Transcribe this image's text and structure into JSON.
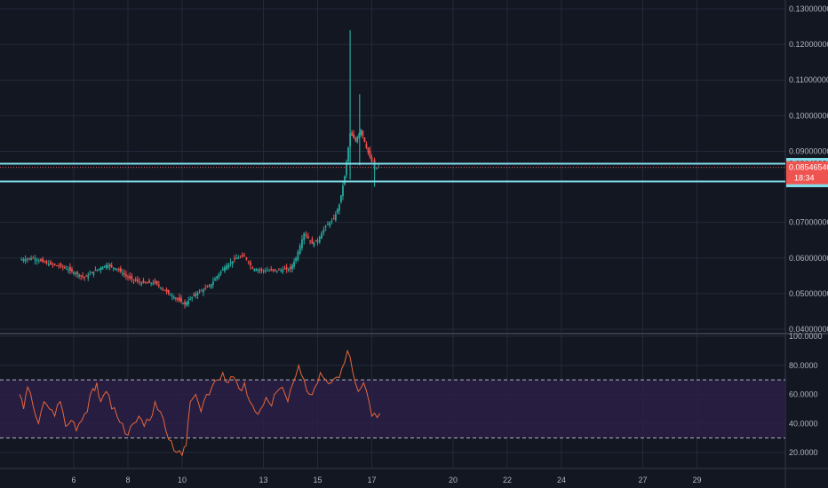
{
  "colors": {
    "background": "#131722",
    "grid": "#242a3a",
    "axis_text": "#b2b5be",
    "up": "#26a69a",
    "down": "#ef5350",
    "hline": "#80deea",
    "price_tag": "#ef5350",
    "rsi_line": "#e8663a",
    "rsi_band": "#2a1f45"
  },
  "chart_data": [
    {
      "type": "candlestick",
      "title": "",
      "x": {
        "type": "date-day",
        "ticks": [
          "6",
          "8",
          "10",
          "13",
          "15",
          "17",
          "20",
          "22",
          "24",
          "27",
          "29"
        ]
      },
      "y": {
        "ylim": [
          0.04,
          0.13
        ],
        "ticks": [
          "0.13000000",
          "0.12000000",
          "0.11000000",
          "0.10000000",
          "0.09000000",
          "0.07000000",
          "0.06000000",
          "0.05000000",
          "0.04000000"
        ]
      },
      "price_path": [
        [
          4.0,
          0.0595
        ],
        [
          4.5,
          0.06
        ],
        [
          5.0,
          0.0585
        ],
        [
          5.6,
          0.0575
        ],
        [
          6.0,
          0.056
        ],
        [
          6.4,
          0.0545
        ],
        [
          6.8,
          0.0565
        ],
        [
          7.2,
          0.058
        ],
        [
          7.6,
          0.057
        ],
        [
          8.0,
          0.0545
        ],
        [
          8.5,
          0.053
        ],
        [
          9.0,
          0.053
        ],
        [
          9.5,
          0.05
        ],
        [
          9.9,
          0.048
        ],
        [
          10.1,
          0.047
        ],
        [
          10.5,
          0.05
        ],
        [
          11.0,
          0.052
        ],
        [
          11.5,
          0.057
        ],
        [
          12.0,
          0.06
        ],
        [
          12.3,
          0.0605
        ],
        [
          12.6,
          0.057
        ],
        [
          13.0,
          0.0565
        ],
        [
          13.5,
          0.0565
        ],
        [
          14.0,
          0.057
        ],
        [
          14.2,
          0.06
        ],
        [
          14.5,
          0.067
        ],
        [
          14.8,
          0.064
        ],
        [
          15.0,
          0.065
        ],
        [
          15.3,
          0.069
        ],
        [
          15.6,
          0.071
        ],
        [
          15.8,
          0.075
        ],
        [
          16.0,
          0.083
        ],
        [
          16.2,
          0.095
        ],
        [
          16.4,
          0.093
        ],
        [
          16.6,
          0.096
        ],
        [
          16.8,
          0.091
        ],
        [
          17.0,
          0.087
        ],
        [
          17.1,
          0.085
        ],
        [
          17.25,
          0.0855
        ]
      ],
      "wicks": [
        [
          16.2,
          0.082,
          0.124
        ],
        [
          16.55,
          0.086,
          0.106
        ],
        [
          17.1,
          0.08,
          0.087
        ]
      ],
      "horizontal_lines": [
        {
          "value": 0.08649326,
          "label": "0.08649326"
        },
        {
          "value": 0.08151697,
          "label": "0.08151697"
        }
      ],
      "last_price": {
        "value": 0.0854654,
        "label": "0.08546540",
        "countdown": "18:34"
      }
    },
    {
      "type": "line",
      "title": "",
      "y": {
        "ylim": [
          15,
          100
        ],
        "ticks": [
          "100.0000",
          "80.0000",
          "60.0000",
          "40.0000",
          "20.0000"
        ]
      },
      "bands": [
        30,
        70
      ],
      "series": [
        {
          "points": [
            [
              4.0,
              60
            ],
            [
              4.15,
              50
            ],
            [
              4.3,
              65
            ],
            [
              4.5,
              52
            ],
            [
              4.7,
              40
            ],
            [
              4.9,
              55
            ],
            [
              5.1,
              50
            ],
            [
              5.3,
              45
            ],
            [
              5.5,
              55
            ],
            [
              5.7,
              38
            ],
            [
              5.9,
              42
            ],
            [
              6.1,
              35
            ],
            [
              6.3,
              42
            ],
            [
              6.5,
              48
            ],
            [
              6.7,
              64
            ],
            [
              6.85,
              68
            ],
            [
              7.0,
              55
            ],
            [
              7.2,
              62
            ],
            [
              7.4,
              50
            ],
            [
              7.6,
              45
            ],
            [
              7.8,
              40
            ],
            [
              8.0,
              32
            ],
            [
              8.2,
              40
            ],
            [
              8.4,
              45
            ],
            [
              8.6,
              38
            ],
            [
              8.8,
              42
            ],
            [
              9.0,
              55
            ],
            [
              9.2,
              48
            ],
            [
              9.4,
              35
            ],
            [
              9.6,
              28
            ],
            [
              9.8,
              20
            ],
            [
              10.0,
              18
            ],
            [
              10.15,
              25
            ],
            [
              10.3,
              55
            ],
            [
              10.5,
              60
            ],
            [
              10.7,
              48
            ],
            [
              10.9,
              60
            ],
            [
              11.1,
              65
            ],
            [
              11.3,
              70
            ],
            [
              11.5,
              75
            ],
            [
              11.7,
              68
            ],
            [
              11.9,
              72
            ],
            [
              12.1,
              64
            ],
            [
              12.3,
              68
            ],
            [
              12.5,
              55
            ],
            [
              12.7,
              48
            ],
            [
              12.9,
              50
            ],
            [
              13.1,
              58
            ],
            [
              13.3,
              52
            ],
            [
              13.5,
              62
            ],
            [
              13.7,
              65
            ],
            [
              13.9,
              55
            ],
            [
              14.1,
              68
            ],
            [
              14.3,
              80
            ],
            [
              14.5,
              70
            ],
            [
              14.7,
              60
            ],
            [
              14.9,
              65
            ],
            [
              15.1,
              75
            ],
            [
              15.3,
              70
            ],
            [
              15.5,
              68
            ],
            [
              15.7,
              72
            ],
            [
              15.9,
              78
            ],
            [
              16.1,
              90
            ],
            [
              16.3,
              75
            ],
            [
              16.5,
              62
            ],
            [
              16.7,
              68
            ],
            [
              16.9,
              55
            ],
            [
              17.0,
              45
            ],
            [
              17.2,
              44
            ],
            [
              17.3,
              47
            ]
          ]
        }
      ]
    }
  ]
}
